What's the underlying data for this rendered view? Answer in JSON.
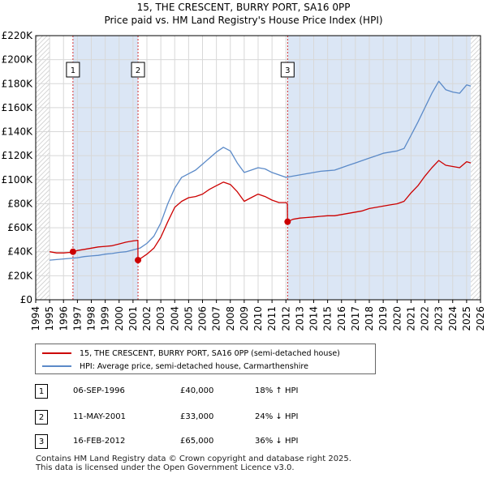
{
  "title": "15, THE CRESCENT, BURRY PORT, SA16 0PP",
  "subtitle": "Price paid vs. HM Land Registry's House Price Index (HPI)",
  "legend": {
    "property": "15, THE CRESCENT, BURRY PORT, SA16 0PP (semi-detached house)",
    "hpi": "HPI: Average price, semi-detached house, Carmarthenshire"
  },
  "colors": {
    "property": "#cc0000",
    "hpi": "#5b8ac8",
    "shade": "#dbe6f5",
    "grid": "#d8d8d8"
  },
  "sales": [
    {
      "num": "1",
      "date": "06-SEP-1996",
      "price": "£40,000",
      "hpi_change": "18% ↑ HPI"
    },
    {
      "num": "2",
      "date": "11-MAY-2001",
      "price": "£33,000",
      "hpi_change": "24% ↓ HPI"
    },
    {
      "num": "3",
      "date": "16-FEB-2012",
      "price": "£65,000",
      "hpi_change": "36% ↓ HPI"
    }
  ],
  "footer": {
    "line1": "Contains HM Land Registry data © Crown copyright and database right 2025.",
    "line2": "This data is licensed under the Open Government Licence v3.0."
  },
  "chart_data": {
    "type": "line",
    "xlim": [
      1994,
      2026
    ],
    "ylim": [
      0,
      220000
    ],
    "y_ticks": [
      0,
      20000,
      40000,
      60000,
      80000,
      100000,
      120000,
      140000,
      160000,
      180000,
      200000,
      220000
    ],
    "y_tick_labels": [
      "£0",
      "£20K",
      "£40K",
      "£60K",
      "£80K",
      "£100K",
      "£120K",
      "£140K",
      "£160K",
      "£180K",
      "£200K",
      "£220K"
    ],
    "x_ticks": [
      1994,
      1995,
      1996,
      1997,
      1998,
      1999,
      2000,
      2001,
      2002,
      2003,
      2004,
      2005,
      2006,
      2007,
      2008,
      2009,
      2010,
      2011,
      2012,
      2013,
      2014,
      2015,
      2016,
      2017,
      2018,
      2019,
      2020,
      2021,
      2022,
      2023,
      2024,
      2025,
      2026
    ],
    "data_range": [
      1995.0,
      2025.3
    ],
    "shaded_periods": [
      [
        1996.68,
        2001.36
      ],
      [
        2012.12,
        2025.3
      ]
    ],
    "markers": [
      {
        "label": "1",
        "x": 1996.68,
        "value": 40000
      },
      {
        "label": "2",
        "x": 2001.36,
        "value": 33000
      },
      {
        "label": "3",
        "x": 2012.12,
        "value": 65000
      }
    ],
    "series": [
      {
        "name": "HPI: Average price, semi-detached house, Carmarthenshire",
        "x": [
          1995.0,
          1995.5,
          1996.0,
          1996.5,
          1997.0,
          1997.5,
          1998.0,
          1998.5,
          1999.0,
          1999.5,
          2000.0,
          2000.5,
          2001.0,
          2001.5,
          2002.0,
          2002.5,
          2003.0,
          2003.5,
          2004.0,
          2004.5,
          2005.0,
          2005.5,
          2006.0,
          2006.5,
          2007.0,
          2007.5,
          2008.0,
          2008.5,
          2009.0,
          2009.5,
          2010.0,
          2010.5,
          2011.0,
          2011.5,
          2012.0,
          2012.5,
          2013.0,
          2013.5,
          2014.0,
          2014.5,
          2015.0,
          2015.5,
          2016.0,
          2016.5,
          2017.0,
          2017.5,
          2018.0,
          2018.5,
          2019.0,
          2019.5,
          2020.0,
          2020.5,
          2021.0,
          2021.5,
          2022.0,
          2022.5,
          2023.0,
          2023.5,
          2024.0,
          2024.5,
          2025.0,
          2025.3
        ],
        "values": [
          33000,
          33500,
          34000,
          34500,
          35000,
          36000,
          36500,
          37000,
          38000,
          38500,
          39500,
          40000,
          41500,
          43000,
          47000,
          53000,
          64000,
          80000,
          93000,
          102000,
          105000,
          108000,
          113000,
          118000,
          123000,
          127000,
          124000,
          114000,
          106000,
          108000,
          110000,
          109000,
          106000,
          104000,
          102000,
          103000,
          104000,
          105000,
          106000,
          107000,
          107500,
          108000,
          110000,
          112000,
          114000,
          116000,
          118000,
          120000,
          122000,
          123000,
          124000,
          126000,
          137000,
          148000,
          160000,
          172000,
          182000,
          175000,
          173000,
          172000,
          179000,
          178000
        ]
      },
      {
        "name": "15, THE CRESCENT, BURRY PORT, SA16 0PP (semi-detached house)",
        "x": [
          1995.0,
          1995.5,
          1996.0,
          1996.5,
          1996.68,
          1997.0,
          1997.5,
          1998.0,
          1998.5,
          1999.0,
          1999.5,
          2000.0,
          2000.5,
          2001.0,
          2001.35,
          2001.36,
          2001.5,
          2002.0,
          2002.5,
          2003.0,
          2003.5,
          2004.0,
          2004.5,
          2005.0,
          2005.5,
          2006.0,
          2006.5,
          2007.0,
          2007.5,
          2008.0,
          2008.5,
          2009.0,
          2009.5,
          2010.0,
          2010.5,
          2011.0,
          2011.5,
          2012.0,
          2012.11,
          2012.12,
          2012.5,
          2013.0,
          2013.5,
          2014.0,
          2014.5,
          2015.0,
          2015.5,
          2016.0,
          2016.5,
          2017.0,
          2017.5,
          2018.0,
          2018.5,
          2019.0,
          2019.5,
          2020.0,
          2020.5,
          2021.0,
          2021.5,
          2022.0,
          2022.5,
          2023.0,
          2023.5,
          2024.0,
          2024.5,
          2025.0,
          2025.3
        ],
        "values": [
          40000,
          39000,
          39000,
          39500,
          40000,
          41000,
          42000,
          43000,
          44000,
          44500,
          45000,
          46500,
          48000,
          49000,
          49500,
          33000,
          34000,
          38000,
          43000,
          52000,
          65000,
          77000,
          82000,
          85000,
          86000,
          88000,
          92000,
          95000,
          98000,
          96000,
          90000,
          82000,
          85000,
          88000,
          86000,
          83000,
          81000,
          81000,
          80000,
          65000,
          67000,
          68000,
          68500,
          69000,
          69500,
          70000,
          70000,
          71000,
          72000,
          73000,
          74000,
          76000,
          77000,
          78000,
          79000,
          80000,
          82000,
          89000,
          95000,
          103000,
          110000,
          116000,
          112000,
          111000,
          110000,
          115000,
          114000
        ]
      }
    ]
  }
}
